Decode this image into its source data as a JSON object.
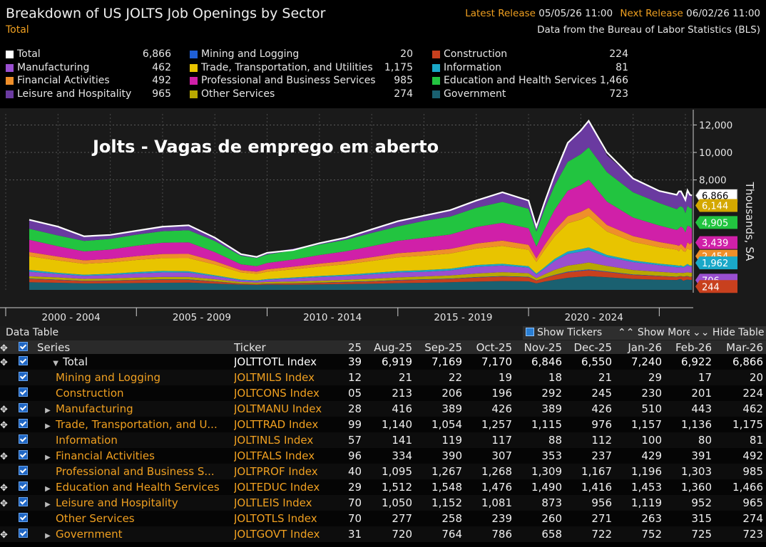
{
  "header": {
    "title": "Breakdown of US JOLTS Job Openings by Sector",
    "subtitle": "Total",
    "latest_release_label": "Latest Release",
    "latest_release_value": "05/05/26 11:00",
    "next_release_label": "Next Release",
    "next_release_value": "06/02/26 11:00",
    "source": "Data from the Bureau of Labor Statistics (BLS)"
  },
  "overlay_text": "Jolts - Vagas de emprego em aberto",
  "y_axis_label": "Thousands, SA",
  "legend": [
    {
      "name": "Total",
      "value": "6,866",
      "color": "#ffffff"
    },
    {
      "name": "Manufacturing",
      "value": "462",
      "color": "#9a4fd0"
    },
    {
      "name": "Financial Activities",
      "value": "492",
      "color": "#ef8f2a"
    },
    {
      "name": "Leisure and Hospitality",
      "value": "965",
      "color": "#6a3aa0"
    },
    {
      "name": "Mining and Logging",
      "value": "20",
      "color": "#1f5fd6"
    },
    {
      "name": "Trade, Transportation, and Utilities",
      "value": "1,175",
      "color": "#e8c400"
    },
    {
      "name": "Professional and Business Services",
      "value": "985",
      "color": "#d020a8"
    },
    {
      "name": "Other Services",
      "value": "274",
      "color": "#b8a800"
    },
    {
      "name": "Construction",
      "value": "224",
      "color": "#c8401e"
    },
    {
      "name": "Information",
      "value": "81",
      "color": "#1aa8c8"
    },
    {
      "name": "Education and Health Services",
      "value": "1,466",
      "color": "#22c440"
    },
    {
      "name": "Government",
      "value": "723",
      "color": "#1a6070"
    }
  ],
  "chart_data": {
    "type": "area",
    "title": "Breakdown of US JOLTS Job Openings by Sector",
    "ylabel": "Thousands, SA",
    "ylim": [
      0,
      12800
    ],
    "yticks": [
      "12,000",
      "10,000",
      "8,000"
    ],
    "ytick_values": [
      12000,
      10000,
      8000
    ],
    "xlim": [
      2000.0,
      2026.3
    ],
    "xticks": [
      "2000 - 2004",
      "2005 - 2009",
      "2010 - 2014",
      "2015 - 2019",
      "2020 - 2024"
    ],
    "xtick_centers": [
      2002.5,
      2007.5,
      2012.5,
      2017.5,
      2022.5
    ],
    "stack_order": [
      "Government",
      "Construction",
      "Mining and Logging",
      "Other Services",
      "Manufacturing",
      "Information",
      "Trade, Transportation, and Utilities",
      "Financial Activities",
      "Professional and Business Services",
      "Education and Health Services",
      "Leisure and Hospitality"
    ],
    "x": [
      2000.9,
      2002.0,
      2003.0,
      2004.0,
      2005.0,
      2006.0,
      2007.0,
      2008.0,
      2009.0,
      2009.6,
      2010.0,
      2011.0,
      2012.0,
      2013.0,
      2014.0,
      2015.0,
      2016.0,
      2017.0,
      2018.0,
      2019.0,
      2020.0,
      2020.3,
      2020.6,
      2021.0,
      2021.5,
      2022.0,
      2022.3,
      2023.0,
      2024.0,
      2025.0,
      2025.67,
      2025.75,
      2025.83,
      2025.92,
      2026.0,
      2026.08,
      2026.17,
      2026.25
    ],
    "total": [
      5100,
      4600,
      3900,
      4000,
      4300,
      4600,
      4700,
      3800,
      2600,
      2400,
      2700,
      2900,
      3400,
      3800,
      4400,
      5000,
      5400,
      5800,
      6500,
      7100,
      6500,
      4600,
      6300,
      8400,
      10700,
      11600,
      12300,
      10000,
      8100,
      7200,
      6919,
      7169,
      7170,
      6846,
      6550,
      7240,
      6922,
      6866
    ],
    "series": [
      {
        "name": "Government",
        "color": "#1a6070",
        "values": [
          560,
          520,
          470,
          480,
          500,
          520,
          530,
          460,
          380,
          360,
          380,
          380,
          400,
          420,
          450,
          490,
          520,
          560,
          600,
          640,
          620,
          470,
          600,
          730,
          880,
          960,
          1000,
          920,
          800,
          740,
          720,
          764,
          786,
          658,
          722,
          752,
          725,
          723
        ]
      },
      {
        "name": "Construction",
        "color": "#c8401e",
        "values": [
          230,
          200,
          170,
          180,
          210,
          220,
          200,
          140,
          70,
          60,
          70,
          90,
          110,
          140,
          160,
          200,
          220,
          230,
          300,
          330,
          300,
          200,
          250,
          330,
          400,
          420,
          440,
          380,
          290,
          260,
          213,
          206,
          196,
          292,
          245,
          230,
          201,
          224
        ]
      },
      {
        "name": "Mining and Logging",
        "color": "#1f5fd6",
        "values": [
          30,
          25,
          20,
          22,
          25,
          30,
          32,
          25,
          12,
          10,
          14,
          18,
          20,
          22,
          28,
          30,
          28,
          30,
          35,
          36,
          30,
          15,
          22,
          35,
          45,
          50,
          52,
          42,
          32,
          25,
          21,
          22,
          19,
          18,
          21,
          29,
          17,
          20
        ]
      },
      {
        "name": "Other Services",
        "color": "#b8a800",
        "values": [
          170,
          160,
          140,
          150,
          160,
          170,
          175,
          150,
          110,
          100,
          110,
          120,
          140,
          150,
          170,
          190,
          210,
          230,
          260,
          280,
          260,
          170,
          250,
          360,
          440,
          470,
          500,
          400,
          320,
          290,
          277,
          258,
          239,
          260,
          271,
          263,
          315,
          274
        ]
      },
      {
        "name": "Manufacturing",
        "color": "#9a4fd0",
        "values": [
          330,
          250,
          220,
          250,
          300,
          330,
          320,
          210,
          120,
          110,
          150,
          220,
          260,
          280,
          320,
          350,
          340,
          360,
          480,
          490,
          400,
          250,
          400,
          650,
          850,
          880,
          900,
          650,
          580,
          480,
          416,
          389,
          426,
          389,
          426,
          510,
          443,
          462
        ]
      },
      {
        "name": "Information",
        "color": "#1aa8c8",
        "values": [
          130,
          90,
          80,
          90,
          100,
          110,
          100,
          80,
          60,
          55,
          60,
          70,
          80,
          90,
          100,
          110,
          120,
          130,
          130,
          120,
          110,
          80,
          110,
          150,
          180,
          190,
          200,
          150,
          120,
          110,
          141,
          119,
          117,
          88,
          112,
          100,
          80,
          81
        ]
      },
      {
        "name": "Trade, Transportation, and Utilities",
        "color": "#e8c400",
        "values": [
          1000,
          900,
          800,
          820,
          880,
          930,
          950,
          780,
          520,
          480,
          540,
          600,
          680,
          760,
          880,
          1000,
          1050,
          1100,
          1200,
          1300,
          1200,
          850,
          1250,
          1650,
          2050,
          2150,
          2300,
          1700,
          1350,
          1200,
          1140,
          1054,
          1257,
          1115,
          976,
          1157,
          1136,
          1175
        ]
      },
      {
        "name": "Financial Activities",
        "color": "#ef8f2a",
        "values": [
          300,
          280,
          250,
          260,
          280,
          300,
          310,
          250,
          160,
          150,
          170,
          190,
          220,
          240,
          270,
          300,
          320,
          340,
          370,
          390,
          360,
          260,
          340,
          430,
          520,
          560,
          580,
          480,
          420,
          380,
          334,
          390,
          307,
          353,
          237,
          429,
          391,
          492
        ]
      },
      {
        "name": "Professional and Business Services",
        "color": "#d020a8",
        "values": [
          900,
          750,
          650,
          680,
          760,
          820,
          840,
          650,
          430,
          400,
          460,
          520,
          620,
          700,
          800,
          900,
          980,
          1050,
          1200,
          1300,
          1200,
          850,
          1150,
          1500,
          1850,
          1950,
          2050,
          1700,
          1350,
          1200,
          1095,
          1267,
          1268,
          1309,
          1167,
          1196,
          1303,
          985
        ]
      },
      {
        "name": "Education and Health Services",
        "color": "#22c440",
        "values": [
          800,
          780,
          760,
          780,
          800,
          840,
          880,
          810,
          620,
          590,
          620,
          660,
          770,
          840,
          960,
          1040,
          1230,
          1300,
          1400,
          1520,
          1420,
          1100,
          1450,
          1770,
          2100,
          2240,
          2350,
          2140,
          1840,
          1640,
          1512,
          1548,
          1476,
          1490,
          1416,
          1453,
          1360,
          1466
        ]
      },
      {
        "name": "Leisure and Hospitality",
        "color": "#6a3aa0",
        "values": [
          650,
          645,
          340,
          288,
          285,
          330,
          343,
          245,
          108,
          85,
          126,
          132,
          100,
          158,
          262,
          390,
          402,
          470,
          525,
          694,
          598,
          355,
          478,
          795,
          1385,
          1730,
          1928,
          1238,
          998,
          875,
          1050,
          1152,
          1081,
          873,
          956,
          1119,
          952,
          965
        ]
      }
    ],
    "end_labels": [
      {
        "label": "6,866",
        "value": 6866,
        "color": "#ffffff"
      },
      {
        "label": "6,144",
        "value": 6144,
        "color": "#d4a800"
      },
      {
        "label": "4,905",
        "value": 4905,
        "color": "#22c440"
      },
      {
        "label": "3,439",
        "value": 3439,
        "color": "#d020a8"
      },
      {
        "label": "2,454",
        "value": 2454,
        "color": "#ef8f2a"
      },
      {
        "label": "1,962",
        "value": 1962,
        "color": "#1aa8c8"
      },
      {
        "label": "706",
        "value": 706,
        "color": "#9a4fd0"
      },
      {
        "label": "244",
        "value": 244,
        "color": "#c8401e"
      }
    ]
  },
  "table": {
    "bar_label": "Data Table",
    "show_tickers": "Show Tickers",
    "show_more": "Show More",
    "hide_table": "Hide Table",
    "columns": [
      "Series",
      "Ticker",
      "25",
      "Aug-25",
      "Sep-25",
      "Oct-25",
      "Nov-25",
      "Dec-25",
      "Jan-26",
      "Feb-26",
      "Mar-26"
    ],
    "rows": [
      {
        "name": "Total",
        "ticker": "JOLTTOTL Index",
        "cut": "39",
        "vals": [
          "6,919",
          "7,169",
          "7,170",
          "6,846",
          "6,550",
          "7,240",
          "6,922",
          "6,866"
        ]
      },
      {
        "name": "Mining and Logging",
        "ticker": "JOLTMILS Index",
        "cut": "12",
        "vals": [
          "21",
          "22",
          "19",
          "18",
          "21",
          "29",
          "17",
          "20"
        ]
      },
      {
        "name": "Construction",
        "ticker": "JOLTCONS Index",
        "cut": "05",
        "vals": [
          "213",
          "206",
          "196",
          "292",
          "245",
          "230",
          "201",
          "224"
        ]
      },
      {
        "name": "Manufacturing",
        "ticker": "JOLTMANU Index",
        "cut": "28",
        "vals": [
          "416",
          "389",
          "426",
          "389",
          "426",
          "510",
          "443",
          "462"
        ]
      },
      {
        "name": "Trade, Transportation, and U...",
        "ticker": "JOLTTRAD Index",
        "cut": "99",
        "vals": [
          "1,140",
          "1,054",
          "1,257",
          "1,115",
          "976",
          "1,157",
          "1,136",
          "1,175"
        ]
      },
      {
        "name": "Information",
        "ticker": "JOLTINLS Index",
        "cut": "57",
        "vals": [
          "141",
          "119",
          "117",
          "88",
          "112",
          "100",
          "80",
          "81"
        ]
      },
      {
        "name": "Financial Activities",
        "ticker": "JOLTFALS Index",
        "cut": "96",
        "vals": [
          "334",
          "390",
          "307",
          "353",
          "237",
          "429",
          "391",
          "492"
        ]
      },
      {
        "name": "Professional and Business S...",
        "ticker": "JOLTPROF Index",
        "cut": "40",
        "vals": [
          "1,095",
          "1,267",
          "1,268",
          "1,309",
          "1,167",
          "1,196",
          "1,303",
          "985"
        ]
      },
      {
        "name": "Education and Health Services",
        "ticker": "JOLTEDUC Index",
        "cut": "29",
        "vals": [
          "1,512",
          "1,548",
          "1,476",
          "1,490",
          "1,416",
          "1,453",
          "1,360",
          "1,466"
        ]
      },
      {
        "name": "Leisure and Hospitality",
        "ticker": "JOLTLEIS Index",
        "cut": "70",
        "vals": [
          "1,050",
          "1,152",
          "1,081",
          "873",
          "956",
          "1,119",
          "952",
          "965"
        ]
      },
      {
        "name": "Other Services",
        "ticker": "JOLTOTLS Index",
        "cut": "70",
        "vals": [
          "277",
          "258",
          "239",
          "260",
          "271",
          "263",
          "315",
          "274"
        ]
      },
      {
        "name": "Government",
        "ticker": "JOLTGOVT Index",
        "cut": "31",
        "vals": [
          "720",
          "764",
          "786",
          "658",
          "722",
          "752",
          "725",
          "723"
        ]
      }
    ]
  }
}
